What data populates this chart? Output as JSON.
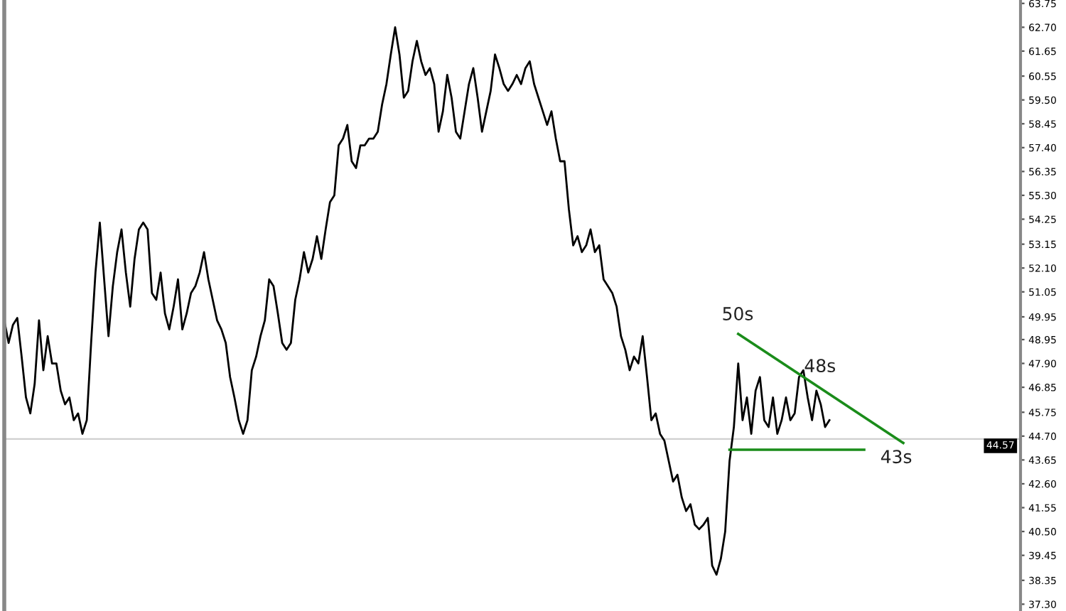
{
  "chart_data": {
    "type": "line",
    "ylim": [
      37.0,
      63.9
    ],
    "tick_labels": "y",
    "grid": false,
    "yticks": [
      {
        "value": 63.75,
        "label": "63.75"
      },
      {
        "value": 62.7,
        "label": "62.70"
      },
      {
        "value": 61.65,
        "label": "61.65"
      },
      {
        "value": 60.55,
        "label": "60.55"
      },
      {
        "value": 59.5,
        "label": "59.50"
      },
      {
        "value": 58.45,
        "label": "58.45"
      },
      {
        "value": 57.4,
        "label": "57.40"
      },
      {
        "value": 56.35,
        "label": "56.35"
      },
      {
        "value": 55.3,
        "label": "55.30"
      },
      {
        "value": 54.25,
        "label": "54.25"
      },
      {
        "value": 53.15,
        "label": "53.15"
      },
      {
        "value": 52.1,
        "label": "52.10"
      },
      {
        "value": 51.05,
        "label": "51.05"
      },
      {
        "value": 49.95,
        "label": "49.95"
      },
      {
        "value": 48.95,
        "label": "48.95"
      },
      {
        "value": 47.9,
        "label": "47.90"
      },
      {
        "value": 46.85,
        "label": "46.85"
      },
      {
        "value": 45.75,
        "label": "45.75"
      },
      {
        "value": 44.7,
        "label": "44.70"
      },
      {
        "value": 43.65,
        "label": "43.65"
      },
      {
        "value": 42.6,
        "label": "42.60"
      },
      {
        "value": 41.55,
        "label": "41.55"
      },
      {
        "value": 40.5,
        "label": "40.50"
      },
      {
        "value": 39.45,
        "label": "39.45"
      },
      {
        "value": 38.35,
        "label": "38.35"
      },
      {
        "value": 37.3,
        "label": "37.30"
      }
    ],
    "ref_lines": [
      {
        "axis": "y",
        "value": 44.57,
        "label": "44.57",
        "color": "#d0d0d0"
      }
    ],
    "annotations": [
      "50s",
      "48s",
      "43s"
    ],
    "categories": [
      null,
      null,
      null,
      null,
      null,
      null,
      null,
      null,
      null,
      null,
      null,
      null,
      null,
      null,
      null,
      null,
      null,
      null,
      null,
      null,
      null,
      null,
      null,
      null,
      null,
      null,
      null,
      null,
      null,
      null,
      null,
      null,
      null,
      null,
      null,
      null,
      null,
      null,
      null,
      null,
      null,
      null,
      null,
      null,
      null,
      null,
      null,
      null,
      null,
      null,
      null,
      null,
      null,
      null,
      null,
      null,
      null,
      null,
      null,
      null,
      null,
      null,
      null,
      null,
      null,
      null,
      null,
      null,
      null,
      null,
      null,
      null,
      null,
      null,
      null,
      null,
      null,
      null,
      null,
      null,
      null,
      null,
      null,
      null,
      null,
      null,
      null,
      null,
      null,
      null,
      null,
      null,
      null,
      null,
      null,
      null,
      null,
      null,
      null,
      null,
      null,
      null,
      null,
      null,
      null,
      null,
      null,
      null,
      null,
      null,
      null,
      null,
      null,
      null,
      null,
      null,
      null,
      null,
      null,
      null,
      null,
      null,
      null,
      null,
      null,
      null,
      null,
      null,
      null,
      null,
      null,
      null,
      null,
      null,
      null,
      null,
      null,
      null,
      null,
      null,
      null,
      null,
      null,
      null,
      null,
      null,
      null,
      null,
      null,
      null,
      null,
      null,
      null,
      null,
      null,
      null,
      null,
      null,
      null,
      null,
      null,
      null,
      null,
      null,
      null,
      null,
      null,
      null,
      null,
      null,
      null,
      null,
      null,
      null,
      null,
      null,
      null,
      null,
      null,
      null,
      null,
      null,
      null,
      null,
      null,
      null,
      null,
      null,
      null,
      null,
      null,
      null,
      null,
      null,
      null,
      null,
      null,
      null,
      null,
      null,
      null,
      null,
      null,
      null,
      null,
      null,
      null,
      null,
      null,
      null,
      null,
      null,
      null,
      null,
      null,
      null,
      null,
      null,
      null,
      null,
      null,
      null,
      null,
      null,
      null,
      null,
      null,
      null,
      null,
      null,
      null,
      null,
      null,
      null,
      null
    ],
    "series": [
      {
        "color": "#000000",
        "values": [
          49.8,
          48.8,
          49.6,
          49.9,
          48.2,
          46.4,
          45.7,
          47.0,
          49.8,
          47.6,
          49.1,
          47.9,
          47.9,
          46.7,
          46.1,
          46.4,
          45.4,
          45.7,
          44.8,
          45.4,
          48.8,
          51.9,
          54.1,
          51.6,
          49.1,
          51.3,
          52.8,
          53.8,
          51.9,
          50.4,
          52.5,
          53.8,
          54.1,
          53.8,
          51.0,
          50.7,
          51.9,
          50.1,
          49.4,
          50.4,
          51.6,
          49.4,
          50.1,
          51.0,
          51.3,
          51.9,
          52.8,
          51.6,
          50.7,
          49.8,
          49.4,
          48.8,
          47.3,
          46.4,
          45.4,
          44.8,
          45.4,
          47.6,
          48.2,
          49.1,
          49.8,
          51.6,
          51.3,
          50.1,
          48.8,
          48.5,
          48.8,
          50.7,
          51.6,
          52.8,
          51.9,
          52.5,
          53.5,
          52.5,
          53.8,
          55.0,
          55.3,
          57.5,
          57.8,
          58.4,
          56.8,
          56.5,
          57.5,
          57.5,
          57.8,
          57.8,
          58.1,
          59.3,
          60.2,
          61.5,
          62.7,
          61.5,
          59.6,
          59.9,
          61.2,
          62.1,
          61.2,
          60.6,
          60.9,
          60.2,
          58.1,
          59.0,
          60.6,
          59.6,
          58.1,
          57.8,
          59.0,
          60.2,
          60.9,
          59.6,
          58.1,
          59.0,
          59.9,
          61.5,
          60.9,
          60.2,
          59.9,
          60.2,
          60.6,
          60.2,
          60.9,
          61.2,
          60.2,
          59.6,
          59.0,
          58.4,
          59.0,
          57.8,
          56.8,
          56.8,
          54.7,
          53.1,
          53.5,
          52.8,
          53.1,
          53.8,
          52.8,
          53.1,
          51.6,
          51.3,
          51.0,
          50.4,
          49.1,
          48.5,
          47.6,
          48.2,
          47.9,
          49.1,
          47.3,
          45.4,
          45.7,
          44.8,
          44.5,
          43.6,
          42.7,
          43.0,
          42.0,
          41.4,
          41.7,
          40.8,
          40.6,
          40.8,
          41.1,
          39.0,
          38.6,
          39.3,
          40.5,
          43.6,
          45.1,
          47.9,
          45.4,
          46.4,
          44.8,
          46.7,
          47.3,
          45.4,
          45.1,
          46.4,
          44.8,
          45.4,
          46.4,
          45.4,
          45.7,
          47.3,
          47.6,
          46.4,
          45.4,
          46.7,
          46.1,
          45.1,
          45.4,
          null,
          null,
          null,
          null,
          null,
          null,
          null,
          null,
          null,
          null,
          null,
          null,
          null,
          null,
          null,
          null,
          null,
          null,
          null,
          null,
          null,
          null,
          null,
          null,
          null,
          null,
          null,
          null,
          null,
          null,
          null,
          null,
          null,
          null,
          null,
          null,
          null,
          null,
          null,
          null,
          null,
          null,
          null,
          null
        ]
      },
      {
        "color": "#1a8c1a",
        "values": [
          null,
          null,
          null,
          null,
          null,
          null,
          null,
          null,
          null,
          null,
          null,
          null,
          null,
          null,
          null,
          null,
          null,
          null,
          null,
          null,
          null,
          null,
          null,
          null,
          null,
          null,
          null,
          null,
          null,
          null,
          null,
          null,
          null,
          null,
          null,
          null,
          null,
          null,
          null,
          null,
          null,
          null,
          null,
          null,
          null,
          null,
          null,
          null,
          null,
          null,
          null,
          null,
          null,
          null,
          null,
          null,
          null,
          null,
          null,
          null,
          null,
          null,
          null,
          null,
          null,
          null,
          null,
          null,
          null,
          null,
          null,
          null,
          null,
          null,
          null,
          null,
          null,
          null,
          null,
          null,
          null,
          null,
          null,
          null,
          null,
          null,
          null,
          null,
          null,
          null,
          null,
          null,
          null,
          null,
          null,
          null,
          null,
          null,
          null,
          null,
          null,
          null,
          null,
          null,
          null,
          null,
          null,
          null,
          null,
          null,
          null,
          null,
          null,
          null,
          null,
          null,
          null,
          null,
          null,
          null,
          null,
          null,
          null,
          null,
          null,
          null,
          null,
          null,
          null,
          null,
          null,
          null,
          null,
          null,
          null,
          null,
          null,
          null,
          null,
          null,
          null,
          null,
          null,
          null,
          null,
          null,
          null,
          null,
          null,
          null,
          null,
          null,
          null,
          null,
          null,
          null,
          null,
          null,
          null,
          null,
          null,
          null,
          null,
          null,
          null,
          null,
          null,
          null,
          null,
          49.2,
          null,
          null,
          null,
          null,
          null,
          null,
          null,
          null,
          null,
          null,
          null,
          null,
          null,
          null,
          null,
          null,
          null,
          null,
          null,
          null,
          null,
          null,
          null,
          null,
          null,
          null,
          null,
          null,
          null,
          null,
          null,
          null,
          null,
          null,
          null,
          null,
          null,
          44.4,
          null,
          null,
          null,
          null,
          null,
          null,
          null,
          null,
          null,
          null,
          null,
          null,
          null,
          null,
          null,
          null,
          null,
          null,
          null,
          null,
          null,
          null,
          null,
          null,
          null,
          null,
          null
        ]
      },
      {
        "color": "#1a8c1a",
        "values": [
          null,
          null,
          null,
          null,
          null,
          null,
          null,
          null,
          null,
          null,
          null,
          null,
          null,
          null,
          null,
          null,
          null,
          null,
          null,
          null,
          null,
          null,
          null,
          null,
          null,
          null,
          null,
          null,
          null,
          null,
          null,
          null,
          null,
          null,
          null,
          null,
          null,
          null,
          null,
          null,
          null,
          null,
          null,
          null,
          null,
          null,
          null,
          null,
          null,
          null,
          null,
          null,
          null,
          null,
          null,
          null,
          null,
          null,
          null,
          null,
          null,
          null,
          null,
          null,
          null,
          null,
          null,
          null,
          null,
          null,
          null,
          null,
          null,
          null,
          null,
          null,
          null,
          null,
          null,
          null,
          null,
          null,
          null,
          null,
          null,
          null,
          null,
          null,
          null,
          null,
          null,
          null,
          null,
          null,
          null,
          null,
          null,
          null,
          null,
          null,
          null,
          null,
          null,
          null,
          null,
          null,
          null,
          null,
          null,
          null,
          null,
          null,
          null,
          null,
          null,
          null,
          null,
          null,
          null,
          null,
          null,
          null,
          null,
          null,
          null,
          null,
          null,
          null,
          null,
          null,
          null,
          null,
          null,
          null,
          null,
          null,
          null,
          null,
          null,
          null,
          null,
          null,
          null,
          null,
          null,
          null,
          null,
          null,
          null,
          null,
          null,
          null,
          null,
          null,
          null,
          null,
          null,
          null,
          null,
          null,
          null,
          null,
          null,
          null,
          null,
          null,
          null,
          44.1,
          null,
          null,
          null,
          null,
          null,
          null,
          null,
          null,
          null,
          null,
          null,
          null,
          null,
          null,
          null,
          null,
          null,
          null,
          null,
          null,
          null,
          null,
          null,
          null,
          null,
          null,
          null,
          null,
          null,
          null,
          44.1,
          null,
          null,
          null,
          null,
          null,
          null,
          null,
          null,
          null,
          null,
          null,
          null,
          null,
          null,
          null,
          null,
          null,
          null,
          null,
          null,
          null,
          null,
          null,
          null,
          null,
          null,
          null,
          null,
          null,
          null,
          null,
          null,
          null,
          null,
          null,
          null
        ]
      }
    ]
  }
}
